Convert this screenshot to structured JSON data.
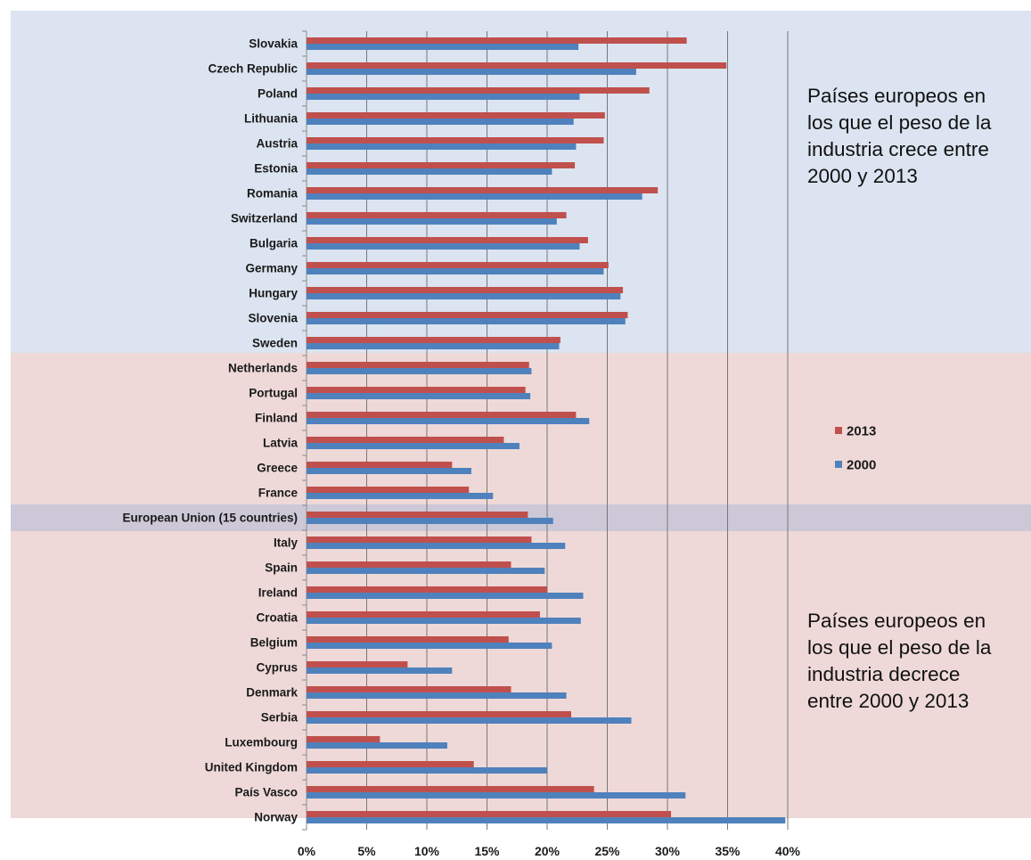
{
  "chart_data": {
    "type": "bar",
    "orientation": "horizontal",
    "categories": [
      "Slovakia",
      "Czech Republic",
      "Poland",
      "Lithuania",
      "Austria",
      "Estonia",
      "Romania",
      "Switzerland",
      "Bulgaria",
      "Germany",
      "Hungary",
      "Slovenia",
      "Sweden",
      "Netherlands",
      "Portugal",
      "Finland",
      "Latvia",
      "Greece",
      "France",
      "European Union (15 countries)",
      "Italy",
      "Spain",
      "Ireland",
      "Croatia",
      "Belgium",
      "Cyprus",
      "Denmark",
      "Serbia",
      "Luxembourg",
      "United Kingdom",
      "País Vasco",
      "Norway"
    ],
    "series": [
      {
        "name": "2013",
        "color": "#c0504d",
        "values": [
          31.6,
          34.9,
          28.5,
          24.8,
          24.7,
          22.3,
          29.2,
          21.6,
          23.4,
          25.1,
          26.3,
          26.7,
          21.1,
          18.5,
          18.2,
          22.4,
          16.4,
          12.1,
          13.5,
          18.4,
          18.7,
          17.0,
          20.0,
          19.4,
          16.8,
          8.4,
          17.0,
          22.0,
          6.1,
          13.9,
          23.9,
          30.3
        ]
      },
      {
        "name": "2000",
        "color": "#4f81bd",
        "values": [
          22.6,
          27.4,
          22.7,
          22.2,
          22.4,
          20.4,
          27.9,
          20.8,
          22.7,
          24.7,
          26.1,
          26.5,
          21.0,
          18.7,
          18.6,
          23.5,
          17.7,
          13.7,
          15.5,
          20.5,
          21.5,
          19.8,
          23.0,
          22.8,
          20.4,
          12.1,
          21.6,
          27.0,
          11.7,
          20.0,
          31.5,
          39.8
        ]
      }
    ],
    "xlim": [
      0,
      40
    ],
    "x_ticks": [
      "0%",
      "5%",
      "10%",
      "15%",
      "20%",
      "25%",
      "30%",
      "35%",
      "40%"
    ],
    "grid": "vertical",
    "legend_position": "right",
    "legend": [
      "2013",
      "2000"
    ],
    "regions": [
      {
        "color": "#dbe4f0",
        "from": "Slovakia",
        "to": "Sweden"
      },
      {
        "color": "#eed9d8",
        "from": "Netherlands",
        "to": "Norway"
      },
      {
        "color": "#ccc8d8",
        "from": "European Union (15 countries)",
        "to": "European Union (15 countries)"
      }
    ],
    "annotations": [
      {
        "lines": [
          "Países europeos en",
          "los que el peso de la",
          "industria crece entre",
          "2000 y 2013"
        ]
      },
      {
        "lines": [
          "Países europeos en",
          "los que el peso de la",
          "industria decrece",
          "entre 2000 y 2013"
        ]
      }
    ]
  }
}
